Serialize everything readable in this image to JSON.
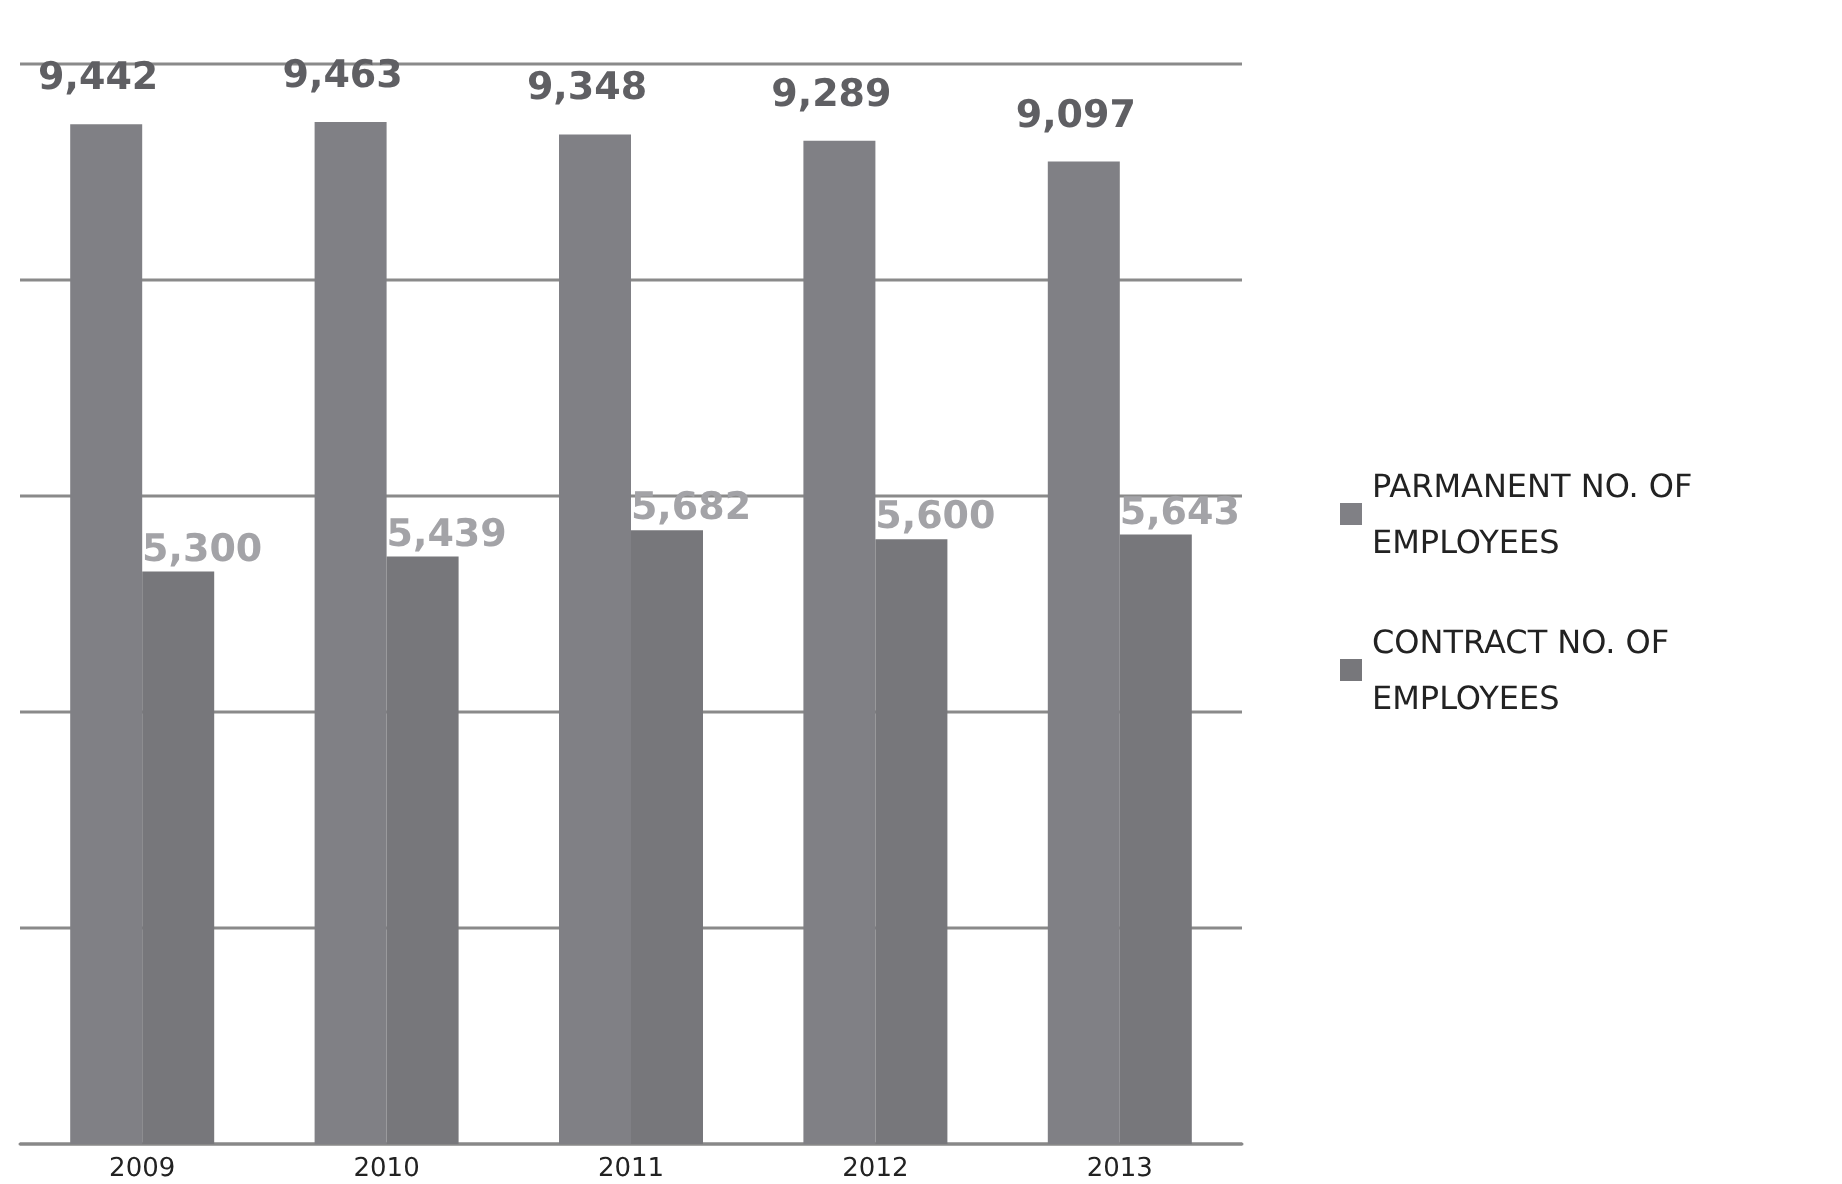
{
  "chart_data": {
    "type": "bar",
    "categories": [
      "2009",
      "2010",
      "2011",
      "2012",
      "2013"
    ],
    "series": [
      {
        "name": "PARMANENT NO. OF EMPLOYEES",
        "color": "#808085",
        "values": [
          9442,
          9463,
          9348,
          9289,
          9097
        ],
        "value_labels": [
          "9,442",
          "9,463",
          "9,348",
          "9,289",
          "9,097"
        ]
      },
      {
        "name": "CONTRACT NO. OF EMPLOYEES",
        "color": "#77777b",
        "values": [
          5300,
          5439,
          5682,
          5600,
          5643
        ],
        "value_labels": [
          "5,300",
          "5,439",
          "5,682",
          "5,600",
          "5,643"
        ]
      }
    ],
    "grid": "y",
    "tick_labels": "x",
    "legend": "right"
  }
}
